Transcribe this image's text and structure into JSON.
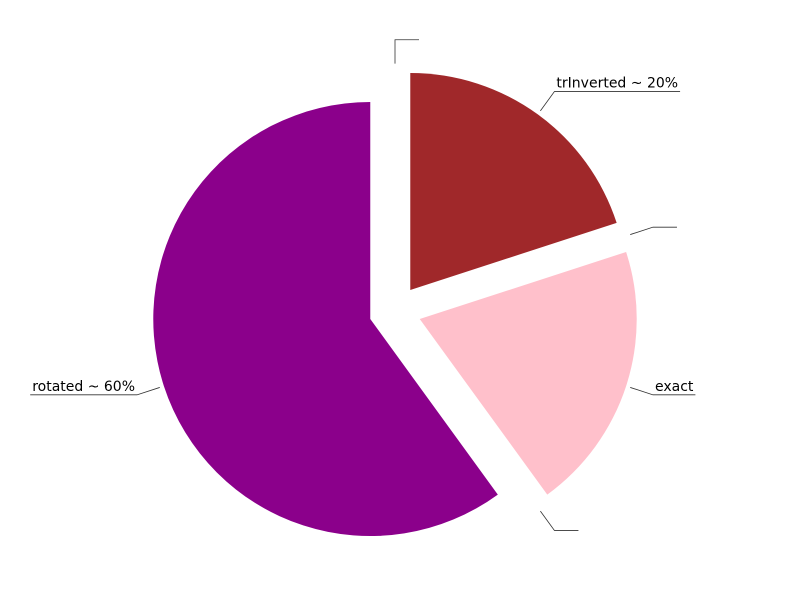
{
  "chart_data": {
    "type": "pie",
    "title": "",
    "slices": [
      {
        "label": "trInverted ~ 20%",
        "value": 20,
        "color": "#a0282a"
      },
      {
        "label": "",
        "value": 0,
        "color": "#a0282a"
      },
      {
        "label": "exact",
        "value": 20,
        "color": "#ffc0cb"
      },
      {
        "label": "",
        "value": 0,
        "color": "#ffc0cb"
      },
      {
        "label": "rotated ~ 60%",
        "value": 60,
        "color": "#8b008b"
      },
      {
        "label": "",
        "value": 0,
        "color": "#8b008b"
      }
    ],
    "start_angle_deg": 90,
    "direction": "clockwise",
    "exploded": true,
    "legend": "none"
  }
}
